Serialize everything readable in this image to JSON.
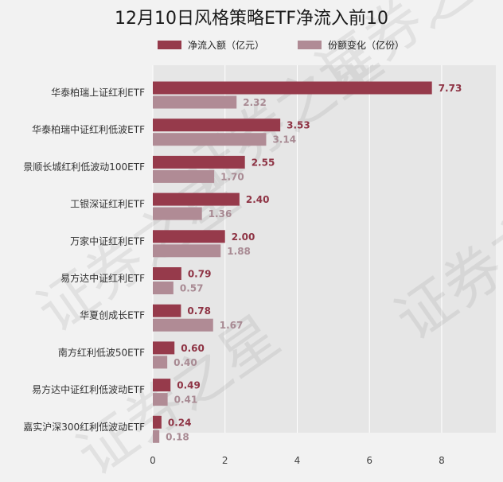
{
  "chart_data": {
    "type": "bar",
    "orientation": "horizontal",
    "title": "12月10日风格策略ETF净流入前10",
    "categories": [
      "华泰柏瑞上证红利ETF",
      "华泰柏瑞中证红利低波ETF",
      "景顺长城红利低波动100ETF",
      "工银深证红利ETF",
      "万家中证红利ETF",
      "易方达中证红利ETF",
      "华夏创成长ETF",
      "南方红利低波50ETF",
      "易方达中证红利低波动ETF",
      "嘉实沪深300红利低波动ETF"
    ],
    "series": [
      {
        "name": "净流入额（亿元）",
        "color": "#963a4b",
        "label_color": "#8e3344",
        "values": [
          7.73,
          3.53,
          2.55,
          2.4,
          2.0,
          0.79,
          0.78,
          0.6,
          0.49,
          0.24
        ],
        "labels": [
          "7.73",
          "3.53",
          "2.55",
          "2.40",
          "2.00",
          "0.79",
          "0.78",
          "0.60",
          "0.49",
          "0.24"
        ]
      },
      {
        "name": "份额变化（亿份）",
        "color": "#b08b95",
        "label_color": "#a88a93",
        "values": [
          2.32,
          3.14,
          1.7,
          1.36,
          1.88,
          0.57,
          1.67,
          0.4,
          0.41,
          0.18
        ],
        "labels": [
          "2.32",
          "3.14",
          "1.70",
          "1.36",
          "1.88",
          "0.57",
          "1.67",
          "0.40",
          "0.41",
          "0.18"
        ]
      }
    ],
    "xlim": [
      0,
      9.5
    ],
    "xticks": [
      0,
      2,
      4,
      6,
      8
    ],
    "xtick_labels": [
      "0",
      "2",
      "4",
      "6",
      "8"
    ],
    "grid": true,
    "legend": "top",
    "plot_background": "#e6e6e6",
    "watermark": "证券之星"
  }
}
